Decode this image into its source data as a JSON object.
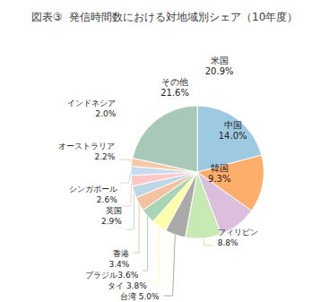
{
  "chart_data": {
    "type": "pie",
    "title": "図表③  発信時間数における対地域別シェア（10年度）",
    "categories": [
      "米国",
      "中国",
      "韓国",
      "フィリピン",
      "台湾",
      "タイ",
      "ブラジル",
      "香港",
      "英国",
      "シンガポール",
      "オーストラリア",
      "インドネシア",
      "その他"
    ],
    "values": [
      20.9,
      14.0,
      9.3,
      8.8,
      5.0,
      3.8,
      3.6,
      3.4,
      2.9,
      2.6,
      2.2,
      2.0,
      21.6
    ],
    "value_labels": [
      "米国\n20.9%",
      "中国\n14.0%",
      "韓国\n9.3%",
      "フィリピン\n8.8%",
      "台湾 5.0%",
      "タイ 3.8%",
      "ブラジル3.6%",
      "香港\n3.4%",
      "英国\n2.9%",
      "シンガポール\n2.6%",
      "オーストラリア\n2.2%",
      "インドネシア\n2.0%",
      "その他\n21.6%"
    ],
    "colors": [
      "#9ECAE1",
      "#FDAE6B",
      "#DCBFDC",
      "#C7E9B4",
      "#AAAAAA",
      "#FFFFAA",
      "#A8D5B5",
      "#F4C2A1",
      "#BDD7E7",
      "#FFC8C8",
      "#C6DBEF",
      "#F5CBA7",
      "#A8C8B8"
    ]
  }
}
